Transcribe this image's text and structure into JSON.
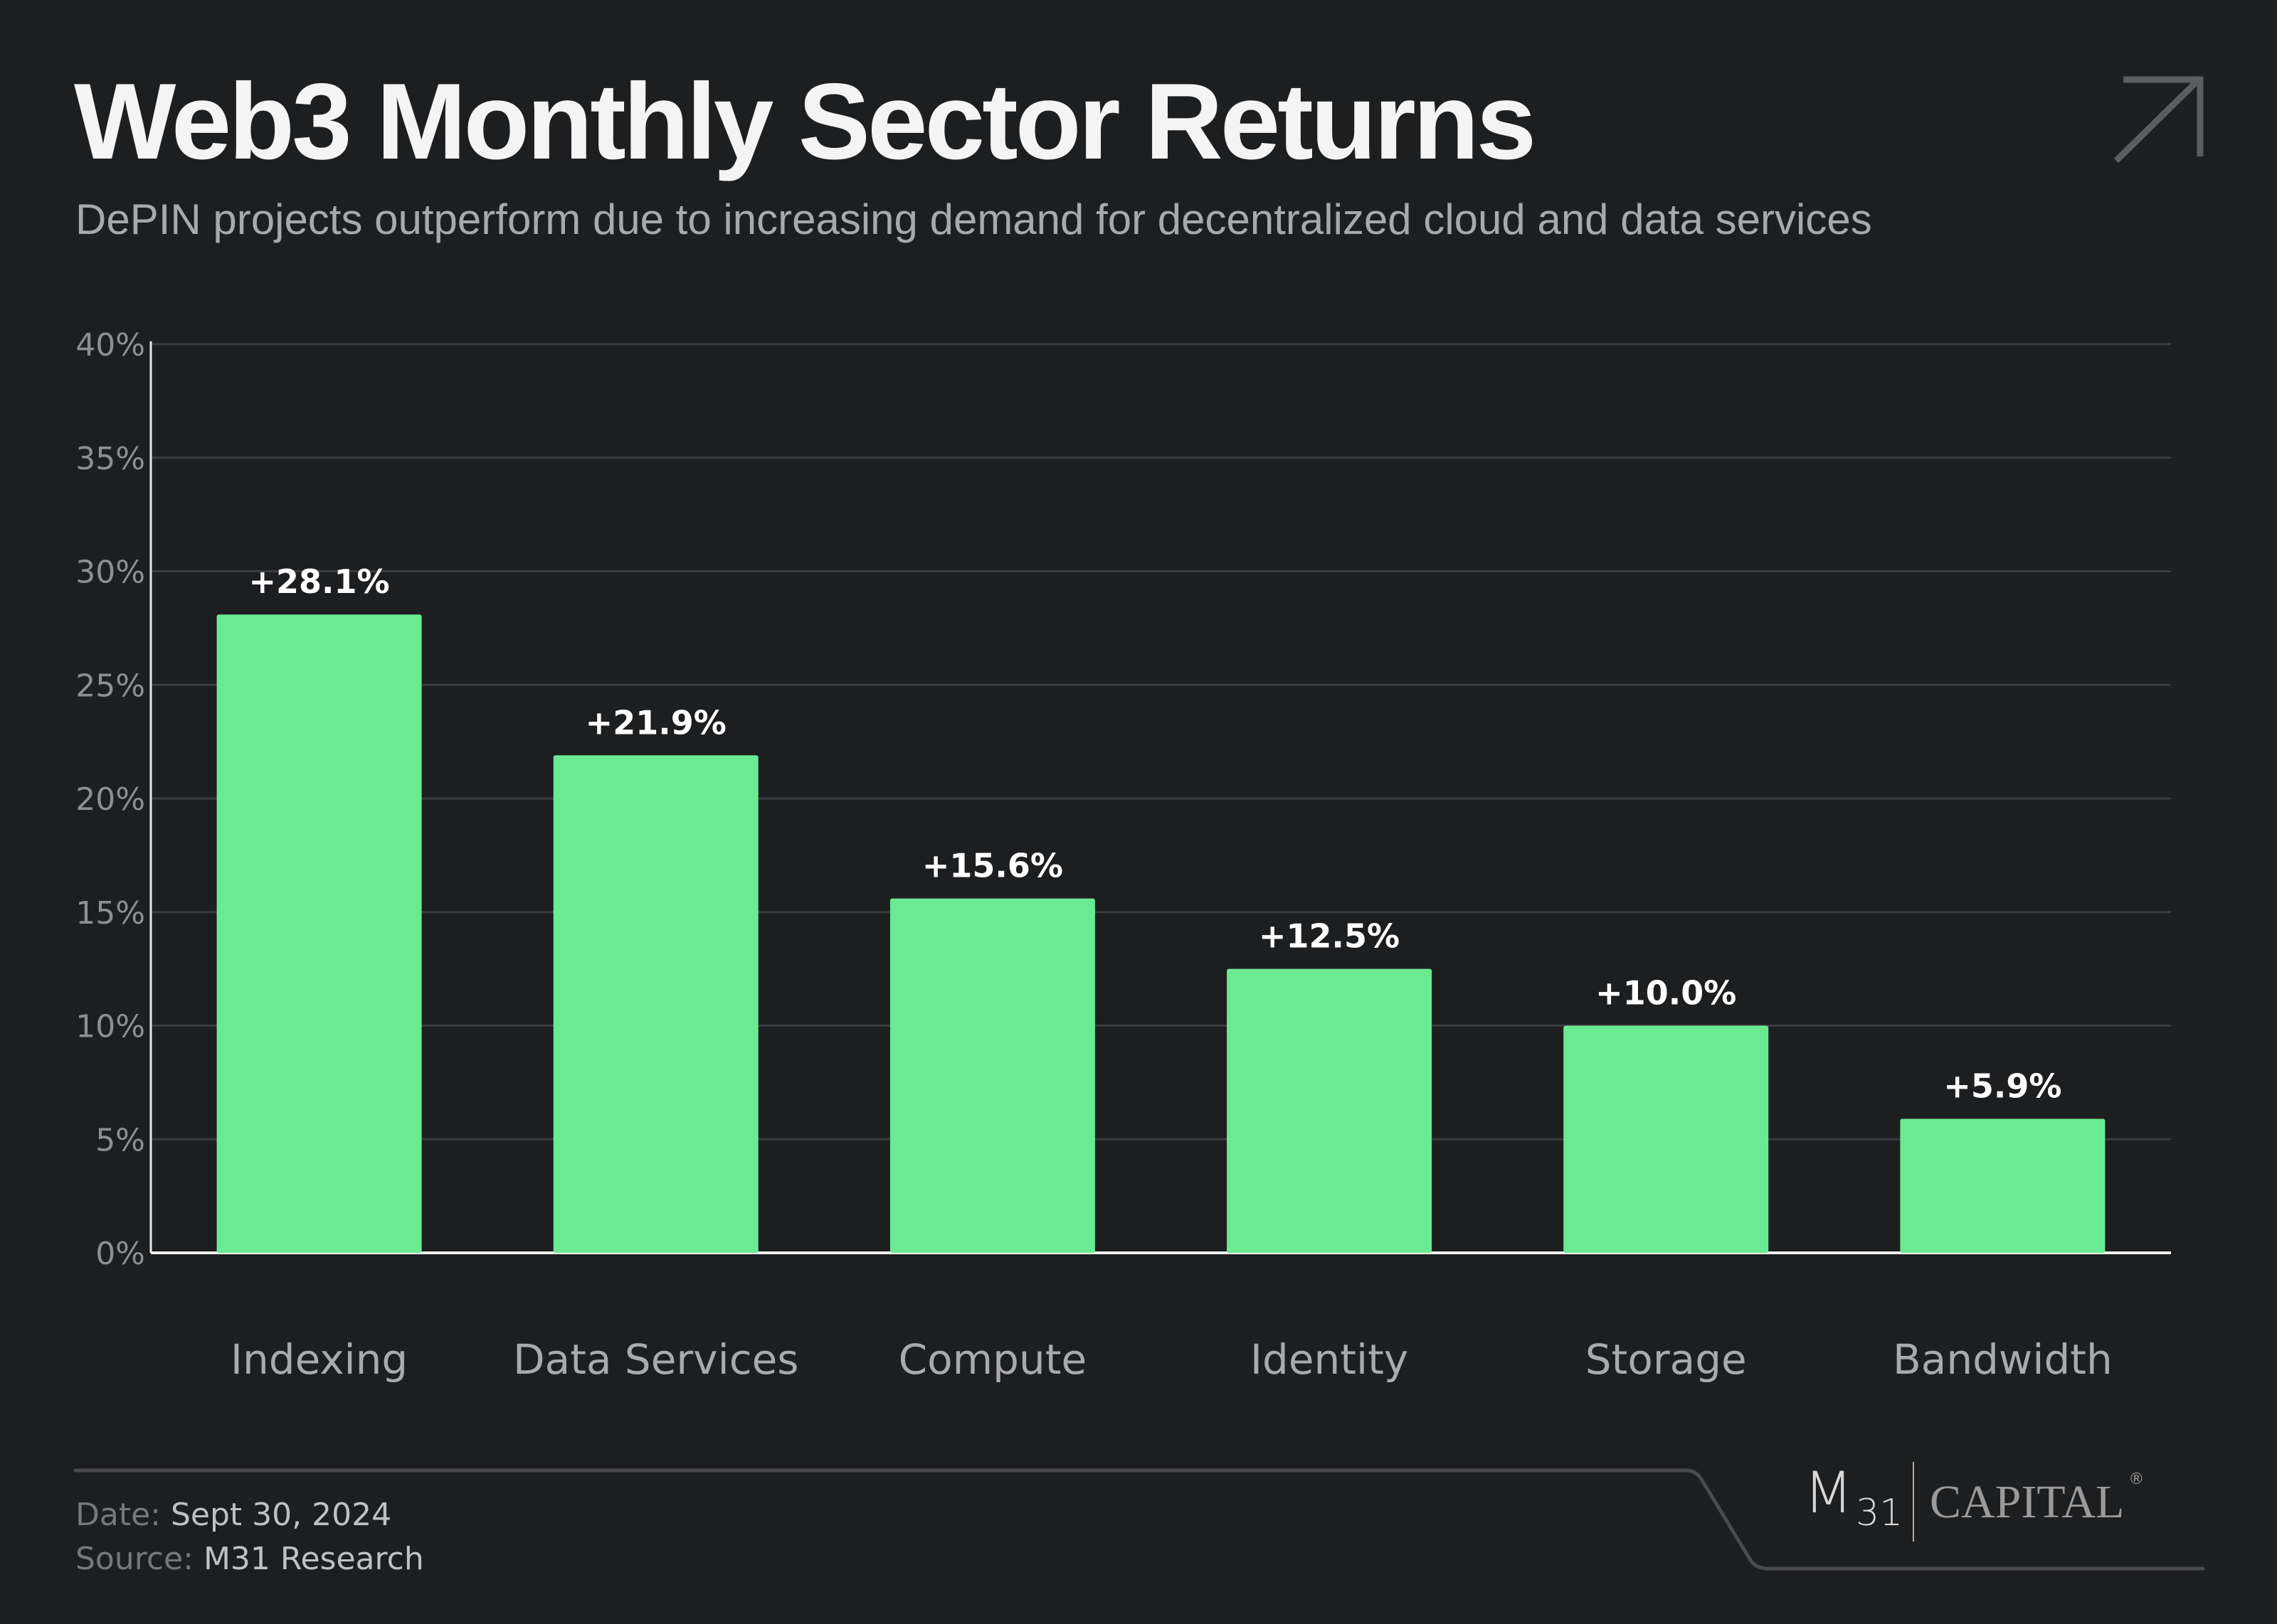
{
  "header": {
    "title": "Web3 Monthly Sector Returns",
    "subtitle": "DePIN projects outperform due to increasing demand for decentralized cloud and data services"
  },
  "colors": {
    "background": "#1d1e20",
    "bar": "#6aeb93",
    "grid": "#3b3c3f"
  },
  "chart_data": {
    "type": "bar",
    "title": "Web3 Monthly Sector Returns",
    "xlabel": "",
    "ylabel": "",
    "categories": [
      "Indexing",
      "Data Services",
      "Compute",
      "Identity",
      "Storage",
      "Bandwidth"
    ],
    "values": [
      28.1,
      21.9,
      15.6,
      12.5,
      10.0,
      5.9
    ],
    "data_labels": [
      "+28.1%",
      "+21.9%",
      "+15.6%",
      "+12.5%",
      "+10.0%",
      "+5.9%"
    ],
    "ylim": [
      0,
      40
    ],
    "yticks": [
      0,
      5,
      10,
      15,
      20,
      25,
      30,
      35,
      40
    ],
    "ytick_labels": [
      "0%",
      "5%",
      "10%",
      "15%",
      "20%",
      "25%",
      "30%",
      "35%",
      "40%"
    ],
    "grid": true
  },
  "footer": {
    "date_label": "Date:",
    "date": "Sept 30, 2024",
    "source_label": "Source:",
    "source": "M31 Research"
  },
  "logo": {
    "m": "M",
    "num": "31",
    "capital": "CAPITAL",
    "registered": "®"
  }
}
